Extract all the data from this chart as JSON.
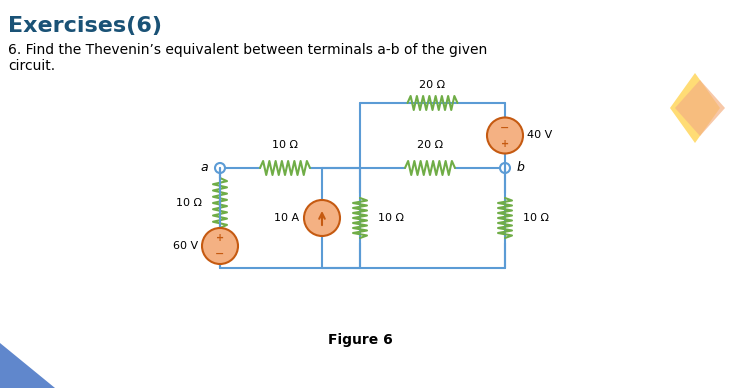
{
  "title": "Exercises(6)",
  "subtitle": "6. Find the Thevenin’s equivalent between terminals a-b of the given\ncircuit.",
  "figure_label": "Figure 6",
  "title_color": "#1a5276",
  "wire_color": "#5b9bd5",
  "resistor_color": "#70ad47",
  "source_fill": "#f4b183",
  "source_stroke": "#c55a11",
  "text_color": "#c55a11",
  "bg_color": "#ffffff",
  "corner_diamond_colors": [
    "#ffd966",
    "#f4b183"
  ],
  "corner_triangle_colors": [
    "#4472c4",
    "#9dc3e6"
  ]
}
